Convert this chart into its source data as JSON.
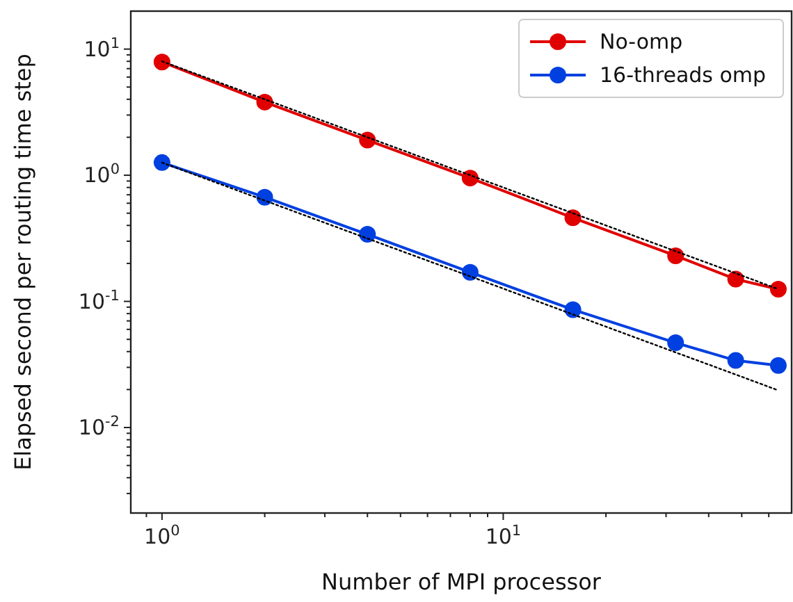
{
  "chart_data": {
    "type": "line",
    "xlabel": "Number of MPI processor",
    "ylabel": "Elapsed second per routing time step",
    "log": "xy",
    "legend": "top right",
    "marker": "circle",
    "grid": false,
    "xlim": [
      0.81,
      70
    ],
    "ylim": [
      0.0021,
      20
    ],
    "xticks": [
      {
        "value": 0.9,
        "label": null
      },
      {
        "value": 1,
        "label": "10$^{0}$"
      },
      {
        "value": 2,
        "label": null
      },
      {
        "value": 3,
        "label": null
      },
      {
        "value": 4,
        "label": null
      },
      {
        "value": 5,
        "label": null
      },
      {
        "value": 6,
        "label": null
      },
      {
        "value": 7,
        "label": null
      },
      {
        "value": 8,
        "label": null
      },
      {
        "value": 9,
        "label": null
      },
      {
        "value": 10,
        "label": "10$^{1}$"
      },
      {
        "value": 20,
        "label": null
      },
      {
        "value": 30,
        "label": null
      },
      {
        "value": 40,
        "label": null
      },
      {
        "value": 50,
        "label": null
      },
      {
        "value": 60,
        "label": null
      }
    ],
    "yticks": [
      {
        "value": 0.003,
        "label": null
      },
      {
        "value": 0.004,
        "label": null
      },
      {
        "value": 0.005,
        "label": null
      },
      {
        "value": 0.006,
        "label": null
      },
      {
        "value": 0.007,
        "label": null
      },
      {
        "value": 0.008,
        "label": null
      },
      {
        "value": 0.009,
        "label": null
      },
      {
        "value": 0.01,
        "label": "10$^{-2}$"
      },
      {
        "value": 0.02,
        "label": null
      },
      {
        "value": 0.03,
        "label": null
      },
      {
        "value": 0.04,
        "label": null
      },
      {
        "value": 0.05,
        "label": null
      },
      {
        "value": 0.06,
        "label": null
      },
      {
        "value": 0.07,
        "label": null
      },
      {
        "value": 0.08,
        "label": null
      },
      {
        "value": 0.09,
        "label": null
      },
      {
        "value": 0.1,
        "label": "10$^{-1}$"
      },
      {
        "value": 0.2,
        "label": null
      },
      {
        "value": 0.3,
        "label": null
      },
      {
        "value": 0.4,
        "label": null
      },
      {
        "value": 0.5,
        "label": null
      },
      {
        "value": 0.6,
        "label": null
      },
      {
        "value": 0.7,
        "label": null
      },
      {
        "value": 0.8,
        "label": null
      },
      {
        "value": 0.9,
        "label": null
      },
      {
        "value": 1,
        "label": "10$^{0}$"
      },
      {
        "value": 2,
        "label": null
      },
      {
        "value": 3,
        "label": null
      },
      {
        "value": 4,
        "label": null
      },
      {
        "value": 5,
        "label": null
      },
      {
        "value": 6,
        "label": null
      },
      {
        "value": 7,
        "label": null
      },
      {
        "value": 8,
        "label": null
      },
      {
        "value": 9,
        "label": null
      },
      {
        "value": 10,
        "label": "10$^{1}$"
      }
    ],
    "x": [
      1,
      2,
      4,
      8,
      16,
      32,
      48,
      64
    ],
    "series": [
      {
        "name": "No-omp",
        "color": "#e00000",
        "values": [
          7.9,
          3.8,
          1.9,
          0.95,
          0.46,
          0.23,
          0.15,
          0.125
        ],
        "line_style": "solid"
      },
      {
        "name": "16-threads omp",
        "color": "#0040e0",
        "values": [
          1.26,
          0.67,
          0.34,
          0.17,
          0.086,
          0.047,
          0.034,
          0.031
        ],
        "line_style": "solid"
      },
      {
        "color": "#000000",
        "values": [
          8,
          4,
          2,
          1,
          0.5,
          0.25,
          0.167,
          0.125
        ],
        "line_style": "dotted",
        "marker": "none"
      },
      {
        "color": "#000000",
        "values": [
          1.26,
          0.63,
          0.315,
          0.158,
          0.0788,
          0.0394,
          0.0263,
          0.0197
        ],
        "line_style": "dotted",
        "marker": "none"
      }
    ]
  }
}
